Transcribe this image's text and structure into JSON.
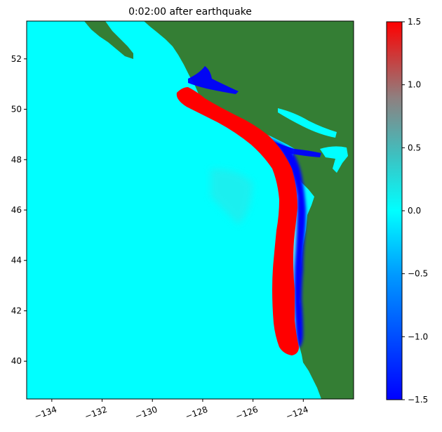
{
  "title": "0:02:00 after earthquake",
  "map": {
    "x_ticks": [
      "−134",
      "−132",
      "−130",
      "−128",
      "−126",
      "−124"
    ],
    "x_tick_values": [
      -134,
      -132,
      -130,
      -128,
      -126,
      -124
    ],
    "y_ticks": [
      "40",
      "42",
      "44",
      "46",
      "48",
      "50",
      "52"
    ],
    "y_tick_values": [
      40,
      42,
      44,
      46,
      48,
      50,
      52
    ],
    "lon_range": [
      -135.0,
      -122.0
    ],
    "lat_range": [
      38.5,
      53.5
    ],
    "colors": {
      "ocean": "#00ffff",
      "land": "#347e34",
      "positive": "#ff0000",
      "negative": "#0000ff"
    }
  },
  "colorbar": {
    "ticks": [
      "1.5",
      "1.0",
      "0.5",
      "0.0",
      "−0.5",
      "−1.0",
      "−1.5"
    ],
    "tick_values": [
      1.5,
      1.0,
      0.5,
      0.0,
      -0.5,
      -1.0,
      -1.5
    ],
    "range": [
      -1.5,
      1.5
    ]
  }
}
